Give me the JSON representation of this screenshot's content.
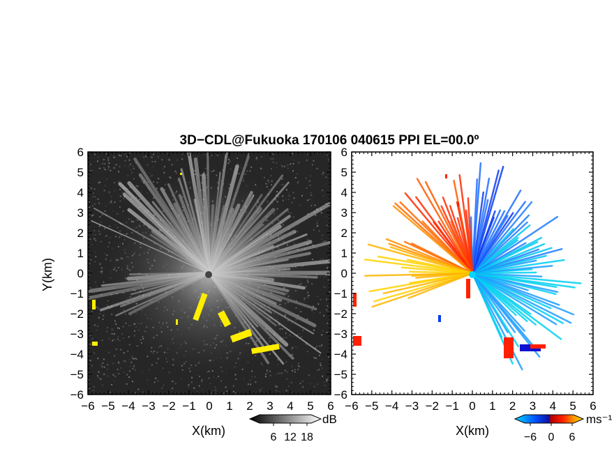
{
  "figure": {
    "title": "3D−CDL@Fukuoka 170106 040615 PPI EL=00.0º"
  },
  "chart_data": [
    {
      "type": "heatmap",
      "panel": "left",
      "xlabel": "X(km)",
      "ylabel": "Y(km)",
      "xlim": [
        -6,
        6
      ],
      "ylim": [
        -6,
        6
      ],
      "xticks": [
        "−6",
        "−5",
        "−4",
        "−3",
        "−2",
        "−1",
        "0",
        "1",
        "2",
        "3",
        "4",
        "5",
        "6"
      ],
      "yticks": [
        "6",
        "5",
        "4",
        "3",
        "2",
        "1",
        "0",
        "−1",
        "−2",
        "−3",
        "−4",
        "−5",
        "−6"
      ],
      "colorbar": {
        "unit": "dB",
        "ticks": [
          "6",
          "12",
          "18"
        ],
        "colors": [
          "#000000",
          "#ffffff"
        ]
      },
      "background_color": "#262626",
      "clutter_color": "#ffee00"
    },
    {
      "type": "heatmap",
      "panel": "right",
      "xlabel": "X(km)",
      "xlim": [
        -6,
        6
      ],
      "ylim": [
        -6,
        6
      ],
      "xticks": [
        "−6",
        "−5",
        "−4",
        "−3",
        "−2",
        "−1",
        "0",
        "1",
        "2",
        "3",
        "4",
        "5",
        "6"
      ],
      "yticks": [
        "6",
        "5",
        "4",
        "3",
        "2",
        "1",
        "0",
        "−1",
        "−2",
        "−3",
        "−4",
        "−5",
        "−6"
      ],
      "colorbar": {
        "unit": "ms⁻¹",
        "ticks": [
          "−6",
          "0",
          "6"
        ],
        "colors": [
          "#00d8ff",
          "#0050ff",
          "#1010a0",
          "#b00000",
          "#ff2000",
          "#ff9000",
          "#ffe000"
        ]
      }
    }
  ]
}
